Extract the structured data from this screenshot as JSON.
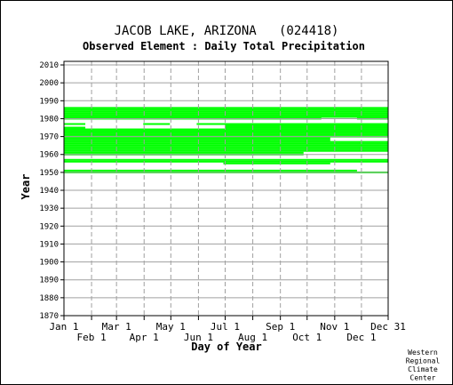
{
  "chart_data": {
    "type": "timeline",
    "title": "JACOB LAKE, ARIZONA   (024418)",
    "subtitle": "Observed Element : Daily Total Precipitation",
    "xlabel": "Day of Year",
    "ylabel": "Year",
    "credit": [
      "Western",
      "Regional",
      "Climate",
      "Center"
    ],
    "xlim": [
      1,
      365
    ],
    "ylim": [
      1870,
      2012
    ],
    "x_ticks_top_row": [
      {
        "label": "Jan 1",
        "day": 1
      },
      {
        "label": "Mar 1",
        "day": 60
      },
      {
        "label": "May 1",
        "day": 121
      },
      {
        "label": "Jul 1",
        "day": 182
      },
      {
        "label": "Sep 1",
        "day": 244
      },
      {
        "label": "Nov 1",
        "day": 305
      },
      {
        "label": "Dec 31",
        "day": 365
      }
    ],
    "x_ticks_bottom_row": [
      {
        "label": "Feb 1",
        "day": 32
      },
      {
        "label": "Apr 1",
        "day": 91
      },
      {
        "label": "Jun 1",
        "day": 152
      },
      {
        "label": "Aug 1",
        "day": 213
      },
      {
        "label": "Oct 1",
        "day": 274
      },
      {
        "label": "Dec 1",
        "day": 335
      }
    ],
    "y_ticks": [
      1870,
      1880,
      1890,
      1900,
      1910,
      1920,
      1930,
      1940,
      1950,
      1960,
      1970,
      1980,
      1990,
      2000,
      2010
    ],
    "grid": true,
    "series_color": "#00ff00",
    "records": [
      {
        "year": 1986,
        "start": 1,
        "end": 365
      },
      {
        "year": 1985,
        "start": 1,
        "end": 365
      },
      {
        "year": 1984,
        "start": 1,
        "end": 365
      },
      {
        "year": 1983,
        "start": 1,
        "end": 365
      },
      {
        "year": 1982,
        "start": 1,
        "end": 365
      },
      {
        "year": 1981,
        "start": 1,
        "end": 365
      },
      {
        "year": 1980,
        "start": 1,
        "end": 290
      },
      {
        "year": 1980,
        "start": 330,
        "end": 365
      },
      {
        "year": 1977,
        "start": 1,
        "end": 25
      },
      {
        "year": 1977,
        "start": 90,
        "end": 120
      },
      {
        "year": 1977,
        "start": 150,
        "end": 365
      },
      {
        "year": 1976,
        "start": 182,
        "end": 365
      },
      {
        "year": 1975,
        "start": 1,
        "end": 25
      },
      {
        "year": 1975,
        "start": 182,
        "end": 365
      },
      {
        "year": 1974,
        "start": 1,
        "end": 365
      },
      {
        "year": 1973,
        "start": 1,
        "end": 365
      },
      {
        "year": 1972,
        "start": 1,
        "end": 365
      },
      {
        "year": 1971,
        "start": 1,
        "end": 365
      },
      {
        "year": 1970,
        "start": 1,
        "end": 365
      },
      {
        "year": 1969,
        "start": 1,
        "end": 300
      },
      {
        "year": 1968,
        "start": 1,
        "end": 300
      },
      {
        "year": 1967,
        "start": 1,
        "end": 365
      },
      {
        "year": 1966,
        "start": 1,
        "end": 365
      },
      {
        "year": 1965,
        "start": 1,
        "end": 365
      },
      {
        "year": 1964,
        "start": 1,
        "end": 365
      },
      {
        "year": 1963,
        "start": 1,
        "end": 365
      },
      {
        "year": 1962,
        "start": 1,
        "end": 365
      },
      {
        "year": 1961,
        "start": 1,
        "end": 270
      },
      {
        "year": 1960,
        "start": 1,
        "end": 270
      },
      {
        "year": 1957,
        "start": 1,
        "end": 365
      },
      {
        "year": 1956,
        "start": 1,
        "end": 365
      },
      {
        "year": 1955,
        "start": 180,
        "end": 300
      },
      {
        "year": 1951,
        "start": 1,
        "end": 330
      },
      {
        "year": 1950,
        "start": 1,
        "end": 365
      }
    ]
  }
}
